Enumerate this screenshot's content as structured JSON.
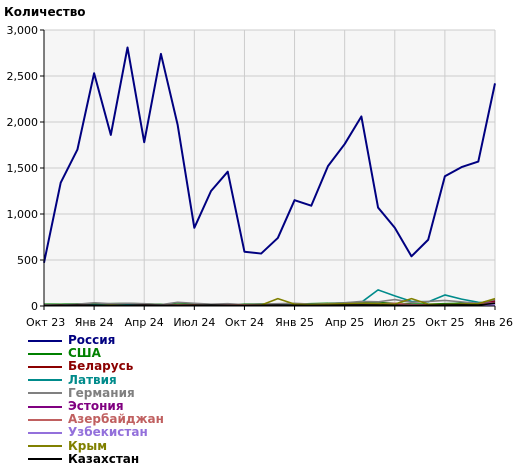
{
  "chart_data": {
    "type": "line",
    "title": "",
    "ylabel": "Количество",
    "xlabel": "",
    "ylim": [
      0,
      3000
    ],
    "y_ticks": [
      "0",
      "500",
      "1,000",
      "1,500",
      "2,000",
      "2,500",
      "3,000"
    ],
    "y_tick_values": [
      0,
      500,
      1000,
      1500,
      2000,
      2500,
      3000
    ],
    "x_ticks": [
      "Окт 23",
      "Янв 24",
      "Апр 24",
      "Июл 24",
      "Окт 24",
      "Янв 25",
      "Апр 25",
      "Июл 25",
      "Окт 25",
      "Янв 26"
    ],
    "x_tick_positions": [
      0,
      3,
      6,
      9,
      12,
      15,
      18,
      21,
      24,
      27
    ],
    "grid": true,
    "legend_position": "bottom-left",
    "x": [
      "Окт 23",
      "Ноя 23",
      "Дек 23",
      "Янв 24",
      "Фев 24",
      "Мар 24",
      "Апр 24",
      "Май 24",
      "Июн 24",
      "Июл 24",
      "Авг 24",
      "Сен 24",
      "Окт 24",
      "Ноя 24",
      "Дек 24",
      "Янв 25",
      "Фев 25",
      "Мар 25",
      "Апр 25",
      "Май 25",
      "Июн 25",
      "Июл 25",
      "Авг 25",
      "Сен 25",
      "Окт 25",
      "Ноя 25",
      "Дек 25",
      "Янв 26"
    ],
    "x_values": [
      0,
      1,
      2,
      3,
      4,
      5,
      6,
      7,
      8,
      9,
      10,
      11,
      12,
      13,
      14,
      15,
      16,
      17,
      18,
      19,
      20,
      21,
      22,
      23,
      24,
      25,
      26,
      27
    ],
    "series": [
      {
        "name": "Россия",
        "color": "#000080",
        "values": [
          470,
          1340,
          1700,
          2530,
          1860,
          2810,
          1780,
          2740,
          1970,
          850,
          1250,
          1460,
          590,
          570,
          740,
          1150,
          1090,
          1520,
          1760,
          2060,
          1070,
          850,
          540,
          720,
          1410,
          1510,
          1570,
          2420
        ]
      },
      {
        "name": "США",
        "color": "#008000",
        "values": [
          20,
          18,
          22,
          20,
          25,
          28,
          22,
          18,
          20,
          22,
          18,
          15,
          20,
          22,
          18,
          20,
          25,
          30,
          35,
          40,
          38,
          30,
          22,
          20,
          25,
          30,
          25,
          45
        ]
      },
      {
        "name": "Беларусь",
        "color": "#8b0000",
        "values": [
          10,
          12,
          15,
          10,
          12,
          10,
          8,
          10,
          12,
          10,
          8,
          10,
          12,
          10,
          8,
          10,
          12,
          15,
          20,
          25,
          22,
          18,
          12,
          10,
          15,
          20,
          18,
          55
        ]
      },
      {
        "name": "Латвия",
        "color": "#008b8b",
        "values": [
          5,
          8,
          10,
          12,
          15,
          18,
          15,
          12,
          10,
          8,
          10,
          12,
          8,
          10,
          15,
          12,
          10,
          15,
          25,
          40,
          175,
          110,
          50,
          45,
          120,
          75,
          40,
          30
        ]
      },
      {
        "name": "Германия",
        "color": "#808080",
        "values": [
          15,
          10,
          20,
          35,
          25,
          30,
          25,
          15,
          40,
          30,
          20,
          25,
          15,
          20,
          25,
          30,
          20,
          25,
          35,
          50,
          45,
          70,
          40,
          50,
          60,
          45,
          30,
          70
        ]
      },
      {
        "name": "Эстония",
        "color": "#800080",
        "values": [
          5,
          5,
          8,
          6,
          5,
          8,
          6,
          5,
          10,
          8,
          6,
          5,
          8,
          6,
          5,
          8,
          6,
          10,
          12,
          15,
          18,
          20,
          15,
          10,
          12,
          15,
          20,
          40
        ]
      },
      {
        "name": "Азербайджан",
        "color": "#c06060",
        "values": [
          8,
          6,
          10,
          8,
          6,
          8,
          10,
          8,
          12,
          10,
          8,
          10,
          12,
          10,
          8,
          10,
          12,
          15,
          18,
          20,
          25,
          30,
          15,
          12,
          15,
          20,
          18,
          35
        ]
      },
      {
        "name": "Узбекистан",
        "color": "#9370db",
        "values": [
          3,
          4,
          5,
          4,
          3,
          5,
          4,
          3,
          5,
          4,
          3,
          4,
          5,
          4,
          3,
          4,
          5,
          6,
          8,
          10,
          8,
          6,
          5,
          4,
          6,
          8,
          7,
          12
        ]
      },
      {
        "name": "Крым",
        "color": "#808000",
        "values": [
          5,
          6,
          5,
          8,
          10,
          8,
          6,
          5,
          8,
          6,
          5,
          6,
          8,
          10,
          80,
          20,
          15,
          20,
          25,
          30,
          25,
          20,
          80,
          20,
          15,
          20,
          25,
          80
        ]
      },
      {
        "name": "Казахстан",
        "color": "#000000",
        "values": [
          6,
          8,
          10,
          8,
          6,
          8,
          10,
          8,
          6,
          8,
          10,
          8,
          6,
          8,
          10,
          8,
          6,
          8,
          10,
          12,
          10,
          8,
          6,
          8,
          10,
          12,
          10,
          30
        ]
      }
    ]
  }
}
